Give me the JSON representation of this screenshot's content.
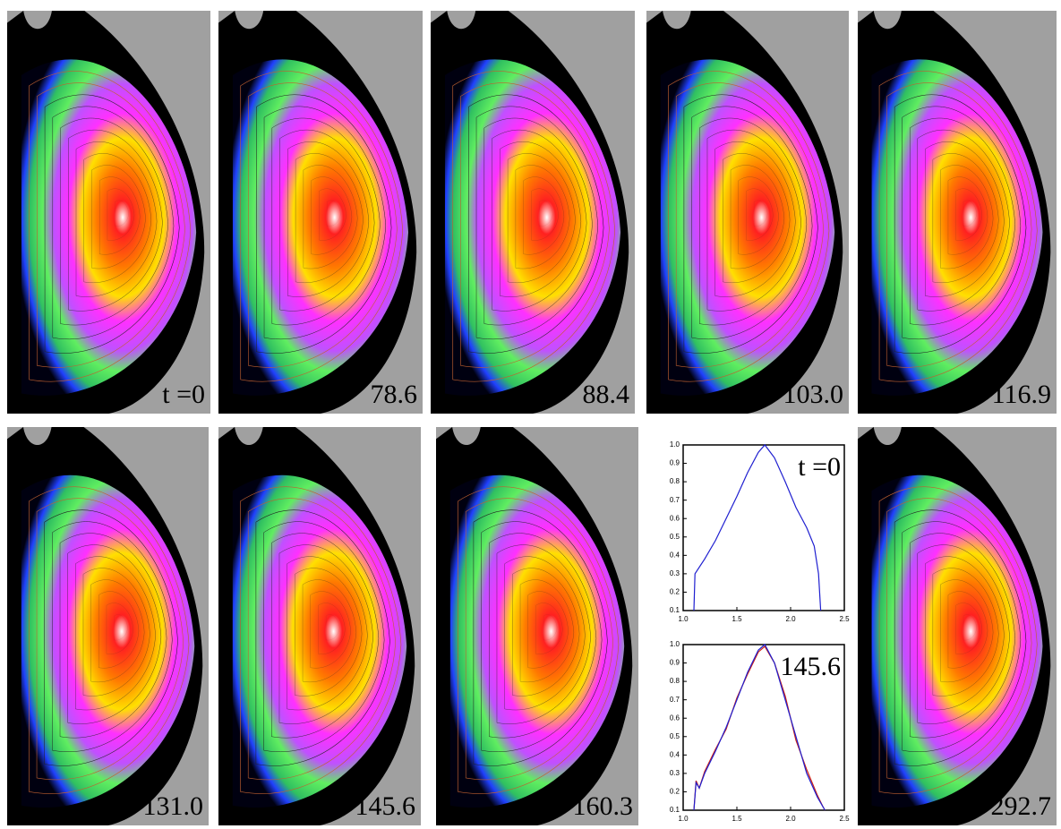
{
  "panels": [
    {
      "label": "t =0"
    },
    {
      "label": "78.6"
    },
    {
      "label": "88.4"
    },
    {
      "label": "103.0"
    },
    {
      "label": "116.9"
    },
    {
      "label": "131.0"
    },
    {
      "label": "145.6"
    },
    {
      "label": "160.3"
    },
    {
      "label": "292.7"
    }
  ],
  "chart_data": [
    {
      "type": "line",
      "title": "t =0",
      "x": [
        1.1,
        1.11,
        1.2,
        1.3,
        1.4,
        1.5,
        1.6,
        1.7,
        1.76,
        1.85,
        1.95,
        2.05,
        2.15,
        2.22,
        2.26,
        2.28
      ],
      "series": [
        {
          "color": "#1f1fd0",
          "values": [
            0.1,
            0.3,
            0.38,
            0.48,
            0.6,
            0.72,
            0.85,
            0.96,
            1.0,
            0.93,
            0.8,
            0.66,
            0.55,
            0.45,
            0.3,
            0.1
          ]
        }
      ],
      "xlim": [
        1.0,
        2.5
      ],
      "xticks": [
        {
          "value": 1.0,
          "label": "1.0"
        },
        1.5,
        {
          "value": 2.0,
          "label": "2.0"
        },
        2.5
      ],
      "ylim": [
        0.1,
        1.0
      ],
      "yticks": [
        0.1,
        0.2,
        0.3,
        0.4,
        0.5,
        0.6,
        0.7,
        0.8,
        0.9,
        {
          "value": 1.0,
          "label": "1.0"
        }
      ]
    },
    {
      "type": "line",
      "title": "145.6",
      "x": [
        1.1,
        1.12,
        1.15,
        1.2,
        1.3,
        1.4,
        1.5,
        1.6,
        1.7,
        1.76,
        1.85,
        1.95,
        2.05,
        2.15,
        2.25,
        2.3,
        2.32
      ],
      "series": [
        {
          "color": "#d02010",
          "values": [
            0.1,
            0.26,
            0.22,
            0.31,
            0.43,
            0.54,
            0.71,
            0.84,
            0.96,
            0.99,
            0.9,
            0.72,
            0.48,
            0.32,
            0.18,
            0.12,
            0.1
          ]
        },
        {
          "color": "#1f1fd0",
          "values": [
            0.1,
            0.25,
            0.22,
            0.3,
            0.42,
            0.55,
            0.7,
            0.85,
            0.97,
            1.0,
            0.9,
            0.7,
            0.5,
            0.3,
            0.17,
            0.12,
            0.1
          ]
        }
      ],
      "xlim": [
        1.0,
        2.5
      ],
      "xticks": [
        {
          "value": 1.0,
          "label": "1.0"
        },
        1.5,
        {
          "value": 2.0,
          "label": "2.0"
        },
        2.5
      ],
      "ylim": [
        0.1,
        1.0
      ],
      "yticks": [
        0.1,
        0.2,
        0.3,
        0.4,
        0.5,
        0.6,
        0.7,
        0.8,
        0.9,
        {
          "value": 1.0,
          "label": "1.0"
        }
      ]
    }
  ]
}
